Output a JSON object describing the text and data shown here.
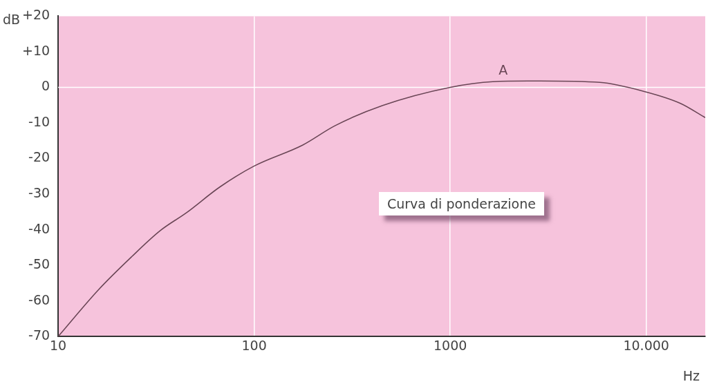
{
  "chart_data": {
    "type": "line",
    "xlabel": "Hz",
    "ylabel": "dB",
    "x": [
      10,
      16.1,
      23.7,
      33.1,
      45.2,
      66.8,
      100,
      177,
      258,
      452,
      1000,
      1650,
      2870,
      5800,
      9850,
      14960,
      20000
    ],
    "series": [
      {
        "name": "A",
        "color": "#6a4656",
        "values": [
          -70,
          -56.8,
          -47.6,
          -40.3,
          -35.2,
          -28,
          -22.1,
          -16.2,
          -10.8,
          -5.1,
          0,
          1.6,
          1.8,
          1.4,
          -1.2,
          -4.5,
          -8.5
        ]
      }
    ],
    "xlim": [
      10,
      20000
    ],
    "xticks": [
      10,
      100,
      1000,
      {
        "value": 10000,
        "label": "10.000"
      }
    ],
    "ylim": [
      -70,
      20
    ],
    "yticks": [
      -70,
      -60,
      -50,
      -40,
      -30,
      -20,
      -10,
      0,
      {
        "value": 10,
        "label": "+10"
      },
      {
        "value": 20,
        "label": "+20"
      }
    ],
    "log": "x",
    "grid": "x",
    "legend": false,
    "marker": "none",
    "line_style": "solid",
    "ref_lines": [
      {
        "axis": "y",
        "value": 0,
        "color": "#ffffff"
      }
    ],
    "annotations": [
      "Curva di ponderazione"
    ]
  }
}
